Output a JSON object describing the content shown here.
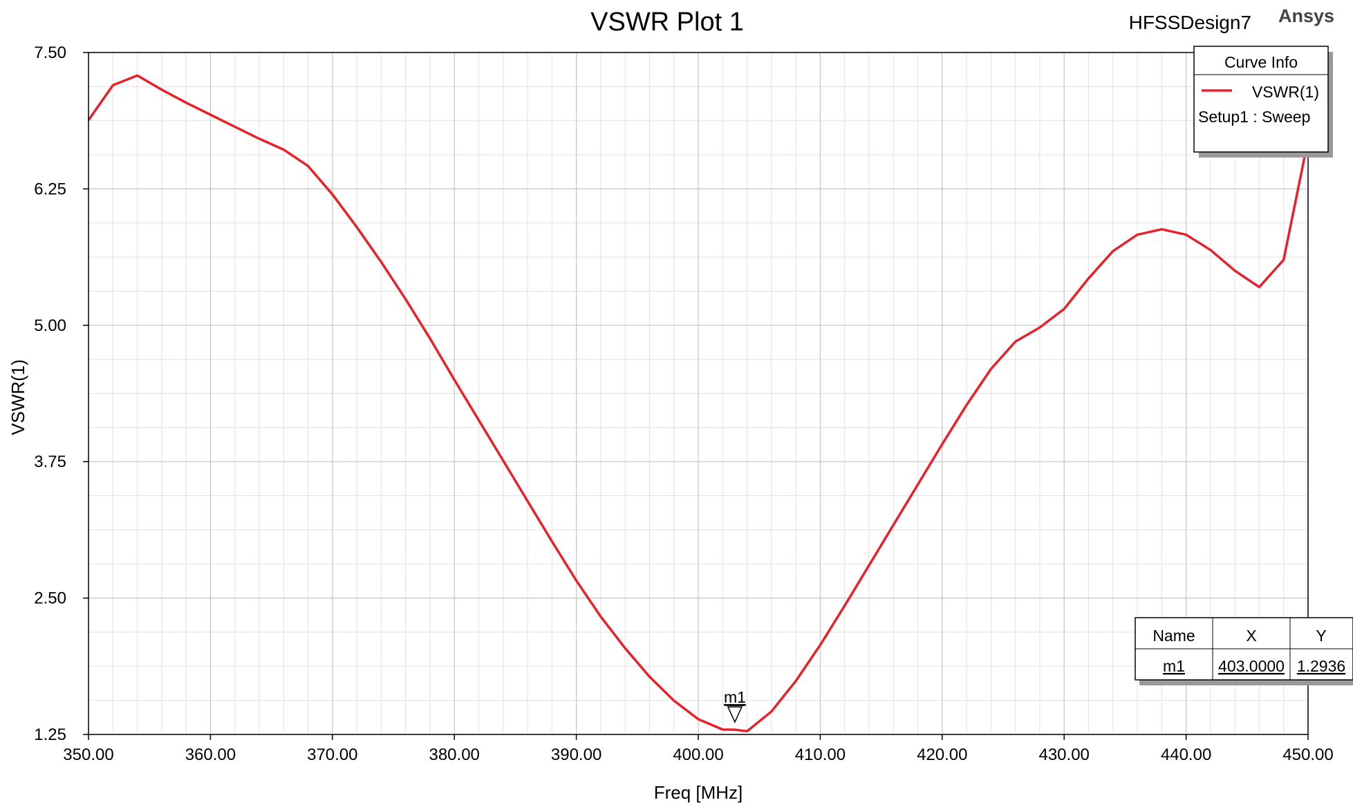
{
  "design_name": "HFSSDesign7",
  "brand": "Ansys",
  "legend": {
    "title": "Curve Info",
    "entries": [
      {
        "name": "VSWR(1)",
        "sub": "Setup1 : Sweep",
        "color": "#e8202a"
      }
    ]
  },
  "marker_table": {
    "headers": [
      "Name",
      "X",
      "Y"
    ],
    "rows": [
      {
        "name": "m1",
        "x": "403.0000",
        "y": "1.2936"
      }
    ]
  },
  "chart_data": {
    "type": "line",
    "title": "VSWR Plot 1",
    "xlabel": "Freq [MHz]",
    "ylabel": "VSWR(1)",
    "xlim": [
      350,
      450
    ],
    "ylim": [
      1.25,
      7.5
    ],
    "xticks": [
      350,
      360,
      370,
      380,
      390,
      400,
      410,
      420,
      430,
      440,
      450
    ],
    "xtick_labels": [
      "350.00",
      "360.00",
      "370.00",
      "380.00",
      "390.00",
      "400.00",
      "410.00",
      "420.00",
      "430.00",
      "440.00",
      "450.00"
    ],
    "yticks": [
      1.25,
      2.5,
      3.75,
      5.0,
      6.25,
      7.5
    ],
    "ytick_labels": [
      "1.25",
      "2.50",
      "3.75",
      "5.00",
      "6.25",
      "7.50"
    ],
    "grid": true,
    "legend_position": "top-right",
    "series": [
      {
        "name": "VSWR(1)",
        "color": "#e8202a",
        "x": [
          350,
          352,
          354,
          356,
          358,
          360,
          362,
          364,
          366,
          368,
          370,
          372,
          374,
          376,
          378,
          380,
          382,
          384,
          386,
          388,
          390,
          392,
          394,
          396,
          398,
          400,
          402,
          403,
          404,
          406,
          408,
          410,
          412,
          414,
          416,
          418,
          420,
          422,
          424,
          426,
          428,
          430,
          432,
          434,
          436,
          438,
          440,
          442,
          444,
          446,
          448,
          450
        ],
        "y": [
          6.88,
          7.2,
          7.29,
          7.16,
          7.04,
          6.93,
          6.82,
          6.71,
          6.61,
          6.46,
          6.2,
          5.9,
          5.58,
          5.24,
          4.88,
          4.5,
          4.13,
          3.76,
          3.39,
          3.02,
          2.66,
          2.33,
          2.04,
          1.78,
          1.56,
          1.39,
          1.295,
          1.2936,
          1.28,
          1.46,
          1.74,
          2.07,
          2.43,
          2.8,
          3.17,
          3.54,
          3.91,
          4.27,
          4.6,
          4.85,
          4.98,
          5.15,
          5.43,
          5.68,
          5.83,
          5.88,
          5.83,
          5.69,
          5.5,
          5.35,
          5.6,
          6.7
        ]
      }
    ],
    "markers": [
      {
        "name": "m1",
        "x": 403.0,
        "y": 1.2936
      }
    ]
  }
}
